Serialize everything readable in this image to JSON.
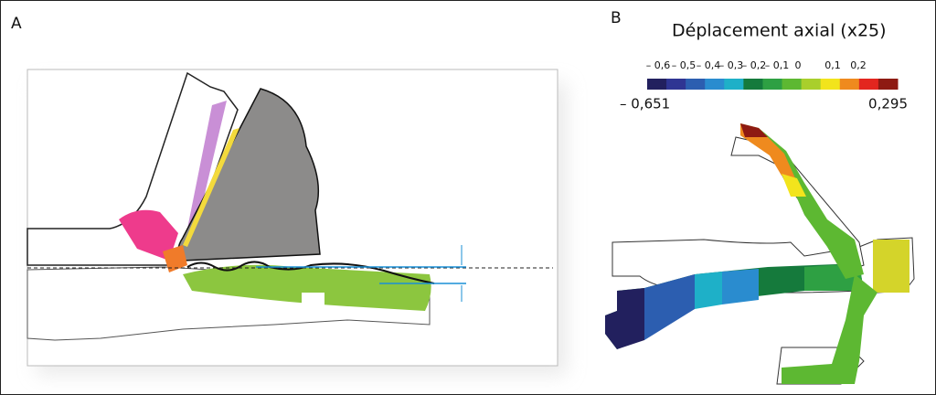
{
  "panel_a": {
    "label": "A"
  },
  "panel_b": {
    "label": "B",
    "title": "Déplacement axial (x25)",
    "scale": {
      "ticks": [
        "– 0,6",
        "– 0,5",
        "– 0,4",
        "– 0,3",
        "– 0,2",
        "– 0,1",
        "0",
        "0,1",
        "0,2"
      ],
      "min_label": "– 0,651",
      "max_label": "0,295",
      "colors": [
        "#22205e",
        "#2f3593",
        "#2c5eb0",
        "#2a8ccf",
        "#1eb0c8",
        "#157a3c",
        "#2ea043",
        "#5db832",
        "#a9cf2c",
        "#f2e41c",
        "#ef8a1e",
        "#e3261f",
        "#8e1a12"
      ]
    }
  }
}
